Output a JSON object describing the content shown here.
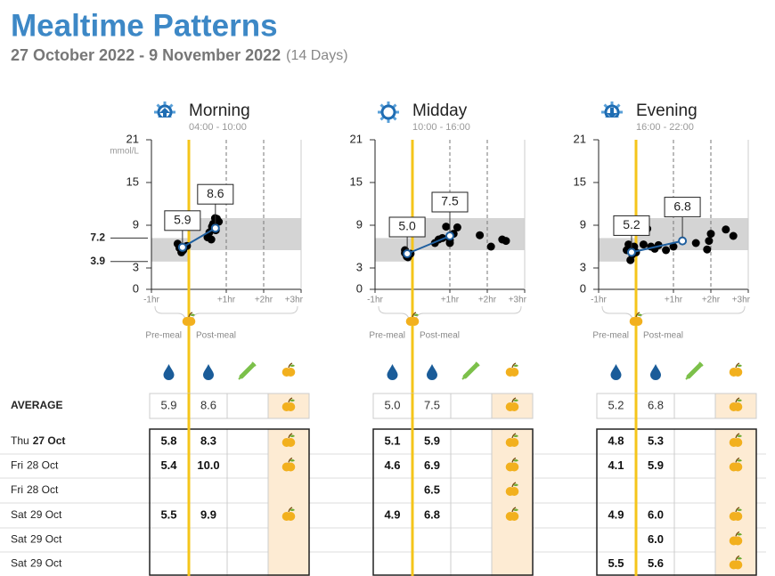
{
  "header": {
    "title": "Mealtime Patterns",
    "date_range": "27 October 2022 - 9 November 2022",
    "days": "(14 Days)"
  },
  "legend": {
    "pre_meal": "Pre-meal",
    "post_meal": "Post-meal"
  },
  "chart_data": [
    {
      "type": "scatter",
      "title": "Morning",
      "subtitle": "04:00 - 10:00",
      "y_label": "mmol/L",
      "icon": "up",
      "xlim": [
        -1,
        3
      ],
      "ylim": [
        0,
        21
      ],
      "yticks": [
        0,
        3,
        9,
        15,
        21
      ],
      "xticks": [
        {
          "value": -1,
          "label": "-1hr"
        },
        {
          "value": 1,
          "label": "+1hr"
        },
        {
          "value": 2,
          "label": "+2hr"
        },
        {
          "value": 3,
          "label": "+3hr"
        }
      ],
      "pre_target": [
        3.9,
        7.2
      ],
      "post_target": [
        5.5,
        10
      ],
      "show_target_labels": true,
      "color": "#000000",
      "x": [
        -0.3,
        -0.2,
        -0.15,
        -0.1,
        -0.25,
        -0.05,
        -0.2,
        0.5,
        0.55,
        0.6,
        0.65,
        0.7,
        0.75,
        0.8,
        0.72,
        0.62
      ],
      "values": [
        6.4,
        5.6,
        5.5,
        6.0,
        5.8,
        6.1,
        5.2,
        7.3,
        8.0,
        7.0,
        9.2,
        10.0,
        9.9,
        9.5,
        8.3,
        8.8
      ],
      "pre_avg": {
        "x": -0.17,
        "value": 5.9,
        "label": "5.9"
      },
      "post_avg": {
        "x": 0.71,
        "value": 8.6,
        "label": "8.6"
      }
    },
    {
      "type": "scatter",
      "title": "Midday",
      "subtitle": "10:00 - 16:00",
      "icon": "sun",
      "xlim": [
        -1,
        3
      ],
      "ylim": [
        0,
        21
      ],
      "yticks": [
        0,
        3,
        9,
        15,
        21
      ],
      "xticks": [
        {
          "value": -1,
          "label": "-1hr"
        },
        {
          "value": 1,
          "label": "+1hr"
        },
        {
          "value": 2,
          "label": "+2hr"
        },
        {
          "value": 3,
          "label": "+3hr"
        }
      ],
      "pre_target": [
        3.9,
        7.2
      ],
      "post_target": [
        5.5,
        10
      ],
      "show_target_labels": false,
      "color": "#000000",
      "x": [
        -0.2,
        -0.15,
        -0.1,
        -0.05,
        -0.12,
        -0.2,
        0.6,
        0.8,
        0.9,
        1.0,
        1.1,
        1.2,
        0.7,
        1.0,
        1.8,
        2.1,
        2.4,
        2.5
      ],
      "values": [
        5.1,
        4.6,
        4.9,
        5.0,
        4.5,
        5.5,
        6.5,
        7.2,
        8.8,
        6.9,
        7.8,
        8.7,
        7.0,
        6.5,
        7.6,
        6.0,
        7.0,
        6.8
      ],
      "pre_avg": {
        "x": -0.14,
        "value": 5.0,
        "label": "5.0"
      },
      "post_avg": {
        "x": 1.0,
        "value": 7.5,
        "label": "7.5"
      }
    },
    {
      "type": "scatter",
      "title": "Evening",
      "subtitle": "16:00 - 22:00",
      "icon": "down",
      "xlim": [
        -1,
        3
      ],
      "ylim": [
        0,
        21
      ],
      "yticks": [
        0,
        3,
        9,
        15,
        21
      ],
      "xticks": [
        {
          "value": -1,
          "label": "-1hr"
        },
        {
          "value": 1,
          "label": "+1hr"
        },
        {
          "value": 2,
          "label": "+2hr"
        },
        {
          "value": 3,
          "label": "+3hr"
        }
      ],
      "pre_target": [
        3.9,
        7.2
      ],
      "post_target": [
        5.5,
        10
      ],
      "show_target_labels": false,
      "color": "#000000",
      "x": [
        -0.25,
        -0.15,
        -0.1,
        -0.05,
        -0.2,
        0.0,
        0.2,
        0.4,
        0.5,
        0.6,
        0.8,
        1.0,
        1.6,
        1.9,
        2.0,
        1.95,
        2.4,
        2.6,
        0.3
      ],
      "values": [
        5.5,
        4.1,
        4.9,
        6.0,
        6.3,
        5.2,
        6.3,
        6.0,
        5.7,
        6.2,
        5.5,
        6.0,
        6.5,
        5.6,
        7.8,
        6.8,
        8.4,
        7.5,
        8.5
      ],
      "pre_avg": {
        "x": -0.12,
        "value": 5.2,
        "label": "5.2"
      },
      "post_avg": {
        "x": 1.24,
        "value": 6.8,
        "label": "6.8"
      }
    }
  ],
  "table": {
    "average_label": "AVERAGE",
    "average_meal": [
      true,
      true,
      true
    ],
    "rows": [
      {
        "day": "Thu",
        "date": "27 Oct",
        "bold": true,
        "cells": [
          {
            "pre": "5.8",
            "post": "8.3",
            "meal": true
          },
          {
            "pre": "5.1",
            "post": "5.9",
            "meal": true
          },
          {
            "pre": "4.8",
            "post": "5.3",
            "meal": true
          }
        ]
      },
      {
        "day": "Fri",
        "date": "28 Oct",
        "bold": false,
        "cells": [
          {
            "pre": "5.4",
            "post": "10.0",
            "meal": true
          },
          {
            "pre": "4.6",
            "post": "6.9",
            "meal": true
          },
          {
            "pre": "4.1",
            "post": "5.9",
            "meal": true
          }
        ]
      },
      {
        "day": "Fri",
        "date": "28 Oct",
        "bold": false,
        "cells": [
          {
            "pre": null,
            "post": null,
            "meal": false
          },
          {
            "pre": null,
            "post": "6.5",
            "meal": true
          },
          {
            "pre": null,
            "post": null,
            "meal": false
          }
        ]
      },
      {
        "day": "Sat",
        "date": "29 Oct",
        "bold": false,
        "cells": [
          {
            "pre": "5.5",
            "post": "9.9",
            "meal": true
          },
          {
            "pre": "4.9",
            "post": "6.8",
            "meal": true
          },
          {
            "pre": "4.9",
            "post": "6.0",
            "meal": true
          }
        ]
      },
      {
        "day": "Sat",
        "date": "29 Oct",
        "bold": false,
        "cells": [
          {
            "pre": null,
            "post": null,
            "meal": false
          },
          {
            "pre": null,
            "post": null,
            "meal": false
          },
          {
            "pre": null,
            "post": "6.0",
            "meal": true
          }
        ]
      },
      {
        "day": "Sat",
        "date": "29 Oct",
        "bold": false,
        "cells": [
          {
            "pre": null,
            "post": null,
            "meal": false
          },
          {
            "pre": null,
            "post": null,
            "meal": false
          },
          {
            "pre": "5.5",
            "post": "5.6",
            "meal": true
          }
        ]
      }
    ]
  }
}
